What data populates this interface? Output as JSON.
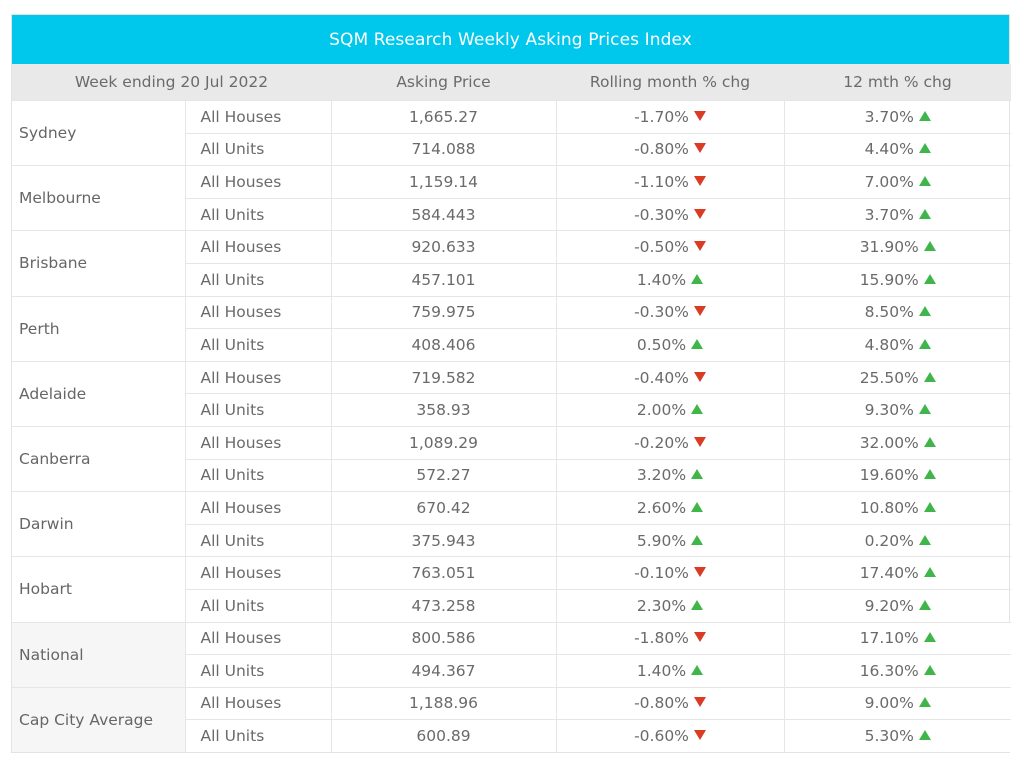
{
  "title": "SQM Research Weekly Asking Prices Index",
  "headers": {
    "week": "Week ending 20 Jul 2022",
    "price": "Asking Price",
    "rolling": "Rolling month % chg",
    "year": "12 mth % chg"
  },
  "colors": {
    "title_bg": "#00c8ec",
    "up": "#3fb54a",
    "down": "#d93b23"
  },
  "regions": [
    {
      "name": "Sydney",
      "rows": [
        {
          "type": "All Houses",
          "price": "1,665.27",
          "rolling": "-1.70%",
          "rolling_dir": "down",
          "year": "3.70%",
          "year_dir": "up"
        },
        {
          "type": "All Units",
          "price": "714.088",
          "rolling": "-0.80%",
          "rolling_dir": "down",
          "year": "4.40%",
          "year_dir": "up"
        }
      ]
    },
    {
      "name": "Melbourne",
      "rows": [
        {
          "type": "All Houses",
          "price": "1,159.14",
          "rolling": "-1.10%",
          "rolling_dir": "down",
          "year": "7.00%",
          "year_dir": "up"
        },
        {
          "type": "All Units",
          "price": "584.443",
          "rolling": "-0.30%",
          "rolling_dir": "down",
          "year": "3.70%",
          "year_dir": "up"
        }
      ]
    },
    {
      "name": "Brisbane",
      "rows": [
        {
          "type": "All Houses",
          "price": "920.633",
          "rolling": "-0.50%",
          "rolling_dir": "down",
          "year": "31.90%",
          "year_dir": "up"
        },
        {
          "type": "All Units",
          "price": "457.101",
          "rolling": "1.40%",
          "rolling_dir": "up",
          "year": "15.90%",
          "year_dir": "up"
        }
      ]
    },
    {
      "name": "Perth",
      "rows": [
        {
          "type": "All Houses",
          "price": "759.975",
          "rolling": "-0.30%",
          "rolling_dir": "down",
          "year": "8.50%",
          "year_dir": "up"
        },
        {
          "type": "All Units",
          "price": "408.406",
          "rolling": "0.50%",
          "rolling_dir": "up",
          "year": "4.80%",
          "year_dir": "up"
        }
      ]
    },
    {
      "name": "Adelaide",
      "rows": [
        {
          "type": "All Houses",
          "price": "719.582",
          "rolling": "-0.40%",
          "rolling_dir": "down",
          "year": "25.50%",
          "year_dir": "up"
        },
        {
          "type": "All Units",
          "price": "358.93",
          "rolling": "2.00%",
          "rolling_dir": "up",
          "year": "9.30%",
          "year_dir": "up"
        }
      ]
    },
    {
      "name": "Canberra",
      "rows": [
        {
          "type": "All Houses",
          "price": "1,089.29",
          "rolling": "-0.20%",
          "rolling_dir": "down",
          "year": "32.00%",
          "year_dir": "up"
        },
        {
          "type": "All Units",
          "price": "572.27",
          "rolling": "3.20%",
          "rolling_dir": "up",
          "year": "19.60%",
          "year_dir": "up"
        }
      ]
    },
    {
      "name": "Darwin",
      "rows": [
        {
          "type": "All Houses",
          "price": "670.42",
          "rolling": "2.60%",
          "rolling_dir": "up",
          "year": "10.80%",
          "year_dir": "up"
        },
        {
          "type": "All Units",
          "price": "375.943",
          "rolling": "5.90%",
          "rolling_dir": "up",
          "year": "0.20%",
          "year_dir": "up"
        }
      ]
    },
    {
      "name": "Hobart",
      "rows": [
        {
          "type": "All Houses",
          "price": "763.051",
          "rolling": "-0.10%",
          "rolling_dir": "down",
          "year": "17.40%",
          "year_dir": "up"
        },
        {
          "type": "All Units",
          "price": "473.258",
          "rolling": "2.30%",
          "rolling_dir": "up",
          "year": "9.20%",
          "year_dir": "up"
        }
      ]
    },
    {
      "name": "National",
      "rows": [
        {
          "type": "All Houses",
          "price": "800.586",
          "rolling": "-1.80%",
          "rolling_dir": "down",
          "year": "17.10%",
          "year_dir": "up"
        },
        {
          "type": "All Units",
          "price": "494.367",
          "rolling": "1.40%",
          "rolling_dir": "up",
          "year": "16.30%",
          "year_dir": "up"
        }
      ]
    },
    {
      "name": "Cap City Average",
      "rows": [
        {
          "type": "All Houses",
          "price": "1,188.96",
          "rolling": "-0.80%",
          "rolling_dir": "down",
          "year": "9.00%",
          "year_dir": "up"
        },
        {
          "type": "All Units",
          "price": "600.89",
          "rolling": "-0.60%",
          "rolling_dir": "down",
          "year": "5.30%",
          "year_dir": "up"
        }
      ]
    }
  ]
}
